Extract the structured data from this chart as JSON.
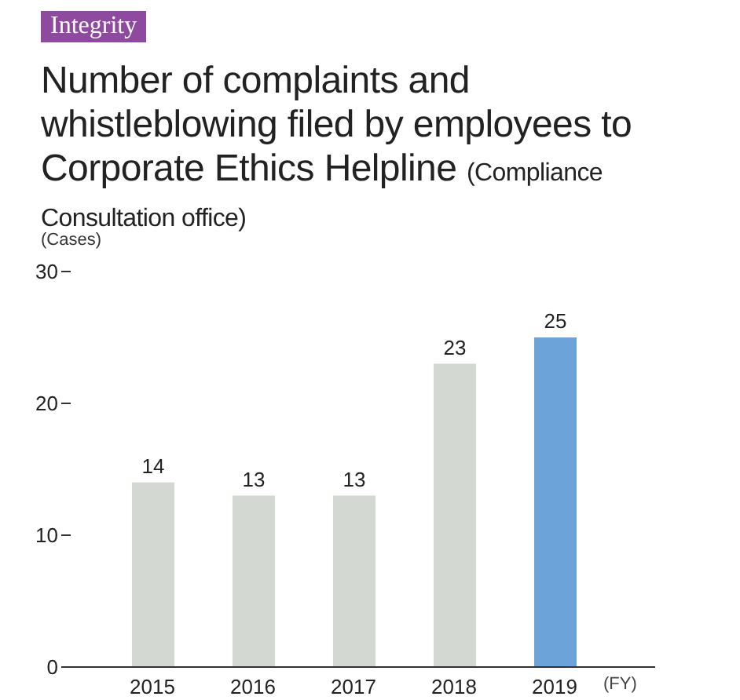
{
  "chart_data": {
    "type": "bar",
    "title": "Number of complaints and whistleblowing filed by employees to Corporate Ethics Helpline",
    "subtitle": "(Compliance Consultation office)",
    "annotations": [
      "Integrity"
    ],
    "ylabel": "(Cases)",
    "xlabel": "(FY)",
    "categories": [
      "2015",
      "2016",
      "2017",
      "2018",
      "2019"
    ],
    "values": [
      14,
      13,
      13,
      23,
      25
    ],
    "colors": [
      "#d4d8d2",
      "#d4d8d2",
      "#d4d8d2",
      "#d4d8d2",
      "#6ca4d9"
    ],
    "ylim": [
      0,
      30
    ],
    "yticks": [
      0,
      10,
      20,
      30
    ],
    "data_labels": true,
    "grid": false,
    "legend": false
  }
}
